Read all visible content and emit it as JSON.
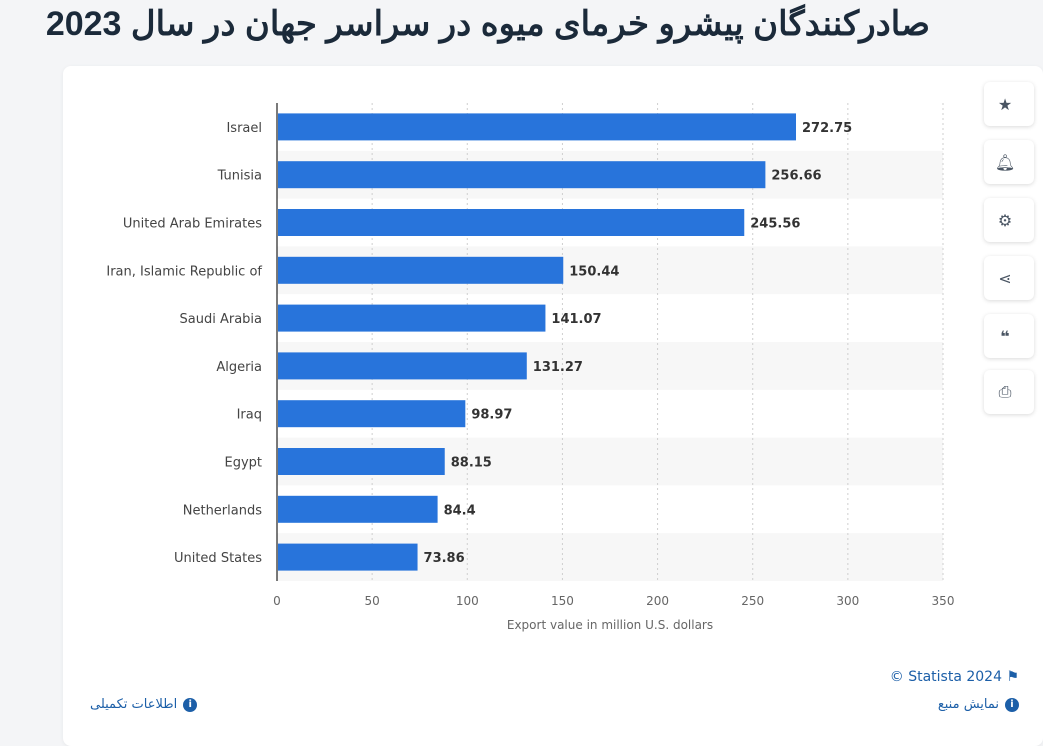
{
  "title": "صادرکنندگان پیشرو خرمای میوه در سراسر جهان در سال 2023",
  "chart_data": {
    "type": "bar",
    "orientation": "horizontal",
    "categories": [
      "Israel",
      "Tunisia",
      "United Arab Emirates",
      "Iran, Islamic Republic of",
      "Saudi Arabia",
      "Algeria",
      "Iraq",
      "Egypt",
      "Netherlands",
      "United States"
    ],
    "values": [
      272.75,
      256.66,
      245.56,
      150.44,
      141.07,
      131.27,
      98.97,
      88.15,
      84.4,
      73.86
    ],
    "value_labels": [
      "272.75",
      "256.66",
      "245.56",
      "150.44",
      "141.07",
      "131.27",
      "98.97",
      "88.15",
      "84.4",
      "73.86"
    ],
    "xlabel": "Export value in million U.S. dollars",
    "xlim": [
      0,
      350
    ],
    "xticks": [
      "0",
      "50",
      "100",
      "150",
      "200",
      "250",
      "300",
      "350"
    ],
    "grid": true,
    "bar_color": "#2874db"
  },
  "credit": "© Statista 2024",
  "footer": {
    "source": "نمایش منبع",
    "info": "اطلاعات تکمیلی"
  },
  "side_buttons": [
    "star-icon",
    "bell-icon",
    "gear-icon",
    "share-icon",
    "quote-icon",
    "print-icon"
  ]
}
